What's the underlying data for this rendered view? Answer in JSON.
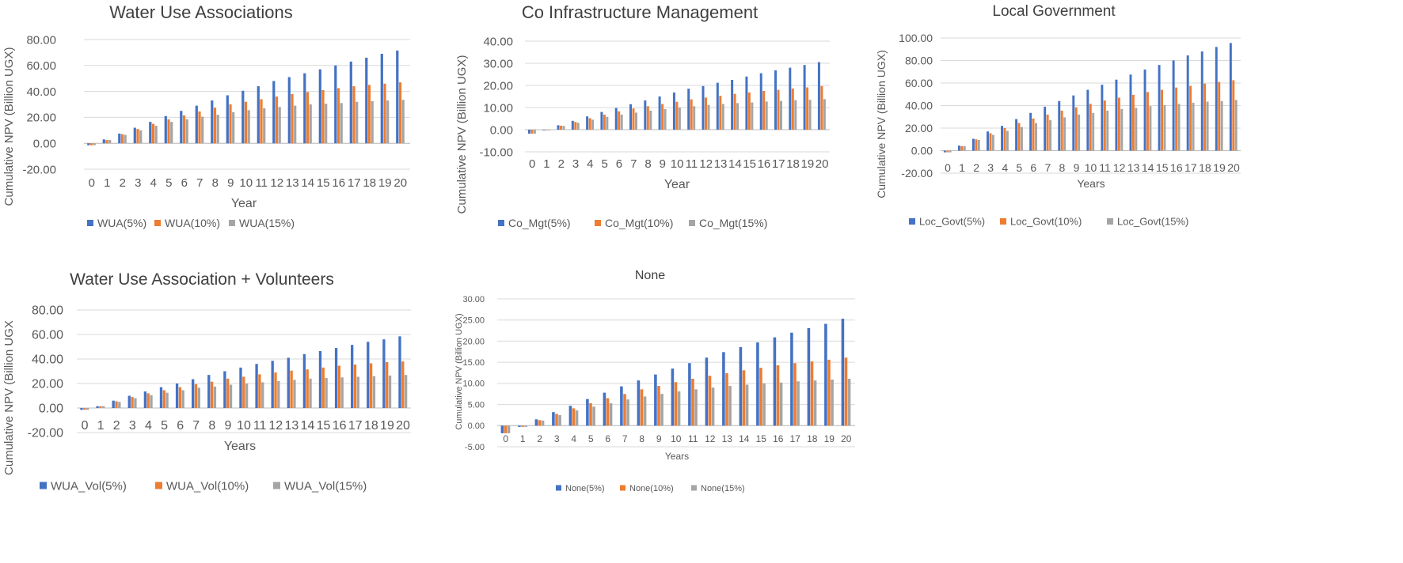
{
  "chart_data": [
    {
      "type": "bar",
      "title": "Water Use Associations",
      "xlabel": "Year",
      "ylabel": "Cumulative NPV (Billion UGX)",
      "ylim": [
        -20,
        80
      ],
      "yticks": [
        "-20.00",
        "0.00",
        "20.00",
        "40.00",
        "60.00",
        "80.00"
      ],
      "categories": [
        "0",
        "1",
        "2",
        "3",
        "4",
        "5",
        "6",
        "7",
        "8",
        "9",
        "10",
        "11",
        "12",
        "13",
        "14",
        "15",
        "16",
        "17",
        "18",
        "19",
        "20"
      ],
      "legend_position": "bottom",
      "series": [
        {
          "name": "WUA(5%)",
          "color": "#4472c4",
          "values": [
            -1.5,
            3,
            7.5,
            12,
            16.5,
            21,
            25,
            29,
            33,
            37,
            40.5,
            44,
            48,
            51,
            54,
            57,
            60,
            63,
            66,
            69,
            71.5
          ]
        },
        {
          "name": "WUA(10%)",
          "color": "#ed7d31",
          "values": [
            -1.5,
            2.5,
            7,
            11,
            15,
            18.5,
            21.5,
            24.5,
            27.5,
            30,
            32,
            34,
            36,
            38,
            39.5,
            41,
            42.5,
            44,
            45,
            46,
            47
          ]
        },
        {
          "name": "WUA(15%)",
          "color": "#a5a5a5",
          "values": [
            -1.5,
            2.5,
            6.5,
            10,
            13.5,
            16.5,
            18.5,
            20.5,
            22,
            24,
            25.5,
            27,
            28,
            29,
            30,
            30.5,
            31,
            32,
            32.5,
            33,
            33.5
          ]
        }
      ]
    },
    {
      "type": "bar",
      "title": "Co Infrastructure Management",
      "xlabel": "Year",
      "ylabel": "Cumulative NPV (Billion UGX)",
      "ylim": [
        -10,
        40
      ],
      "yticks": [
        "-10.00",
        "0.00",
        "10.00",
        "20.00",
        "30.00",
        "40.00"
      ],
      "categories": [
        "0",
        "1",
        "2",
        "3",
        "4",
        "5",
        "6",
        "7",
        "8",
        "9",
        "10",
        "11",
        "12",
        "13",
        "14",
        "15",
        "16",
        "17",
        "18",
        "19",
        "20"
      ],
      "legend_position": "bottom",
      "series": [
        {
          "name": "Co_Mgt(5%)",
          "color": "#4472c4",
          "values": [
            -1.8,
            -0.1,
            2,
            4,
            6,
            8,
            9.8,
            11.5,
            13.2,
            15,
            16.8,
            18.5,
            19.7,
            21.2,
            22.5,
            24,
            25.5,
            26.8,
            28,
            29.2,
            30.5
          ]
        },
        {
          "name": "Co_Mgt(10%)",
          "color": "#ed7d31",
          "values": [
            -1.8,
            -0.1,
            1.8,
            3.5,
            5.2,
            6.8,
            8.3,
            9.6,
            10.6,
            11.6,
            12.6,
            13.7,
            14.5,
            15.3,
            16.2,
            16.8,
            17.5,
            18,
            18.6,
            19.1,
            19.7
          ]
        },
        {
          "name": "Co_Mgt(15%)",
          "color": "#a5a5a5",
          "values": [
            -1.8,
            -0.1,
            1.7,
            3.1,
            4.5,
            5.8,
            6.8,
            7.7,
            8.6,
            9.3,
            10,
            10.6,
            11.2,
            11.6,
            12,
            12.3,
            12.7,
            13,
            13.3,
            13.5,
            13.8
          ]
        }
      ]
    },
    {
      "type": "bar",
      "title": "Local Government",
      "xlabel": "Years",
      "ylabel": "Cumulative NPV (Billion UGX)",
      "ylim": [
        -20,
        100
      ],
      "yticks": [
        "-20.00",
        "0.00",
        "20.00",
        "40.00",
        "60.00",
        "80.00",
        "100.00"
      ],
      "categories": [
        "0",
        "1",
        "2",
        "3",
        "4",
        "5",
        "6",
        "7",
        "8",
        "9",
        "10",
        "11",
        "12",
        "13",
        "14",
        "15",
        "16",
        "17",
        "18",
        "19",
        "20"
      ],
      "legend_position": "bottom",
      "series": [
        {
          "name": "Loc_Govt(5%)",
          "color": "#4472c4",
          "values": [
            -1.5,
            4.5,
            10.5,
            17,
            22,
            28,
            33.5,
            39,
            44,
            49,
            54,
            58.5,
            63,
            67.5,
            72,
            76,
            80,
            84.5,
            88,
            92,
            95.5
          ]
        },
        {
          "name": "Loc_Govt(10%)",
          "color": "#ed7d31",
          "values": [
            -1.5,
            4,
            10,
            15.5,
            20,
            24.5,
            28.5,
            32,
            35.5,
            38.5,
            41.5,
            44.5,
            47,
            49.5,
            52,
            54,
            56,
            57.5,
            59.5,
            61,
            62.5
          ]
        },
        {
          "name": "Loc_Govt(15%)",
          "color": "#a5a5a5",
          "values": [
            -1.5,
            4,
            9.5,
            14,
            17.5,
            21,
            24.5,
            27,
            29.5,
            32,
            33.5,
            35.5,
            37,
            38,
            39.5,
            40.5,
            41.5,
            42.5,
            43.5,
            44,
            45
          ]
        }
      ]
    },
    {
      "type": "bar",
      "title": "Water Use Association + Volunteers",
      "xlabel": "Years",
      "ylabel": "Cumulative NPV (Billion UGX",
      "ylim": [
        -20,
        80
      ],
      "yticks": [
        "-20.00",
        "0.00",
        "20.00",
        "40.00",
        "60.00",
        "80.00"
      ],
      "categories": [
        "0",
        "1",
        "2",
        "3",
        "4",
        "5",
        "6",
        "7",
        "8",
        "9",
        "10",
        "11",
        "12",
        "13",
        "14",
        "15",
        "16",
        "17",
        "18",
        "19",
        "20"
      ],
      "legend_position": "bottom",
      "series": [
        {
          "name": "WUA_Vol(5%)",
          "color": "#4472c4",
          "values": [
            -1.5,
            1.5,
            6,
            10,
            13.5,
            17,
            20,
            23.5,
            27,
            30,
            33,
            36,
            38.5,
            41,
            44,
            46.5,
            49,
            51.5,
            54,
            56,
            58.5
          ]
        },
        {
          "name": "WUA_Vol(10%)",
          "color": "#ed7d31",
          "values": [
            -1.5,
            1.5,
            5.5,
            9,
            12,
            14.5,
            17,
            19.5,
            21.5,
            24,
            25.5,
            27.5,
            29,
            30.5,
            31.5,
            33,
            34.5,
            35.5,
            36.5,
            37.5,
            38
          ]
        },
        {
          "name": "WUA_Vol(15%)",
          "color": "#a5a5a5",
          "values": [
            -1.5,
            1.5,
            5,
            8,
            10.5,
            12.5,
            14.5,
            16.5,
            17.5,
            19,
            20,
            21,
            22,
            23,
            24,
            24.5,
            25,
            25.5,
            26,
            26.5,
            27
          ]
        }
      ]
    },
    {
      "type": "bar",
      "title": "None",
      "xlabel": "Years",
      "ylabel": "Cumulative NPV (Billion UGX)",
      "ylim": [
        -5,
        30
      ],
      "yticks": [
        "-5.00",
        "0.00",
        "5.00",
        "10.00",
        "15.00",
        "20.00",
        "25.00",
        "30.00"
      ],
      "categories": [
        "0",
        "1",
        "2",
        "3",
        "4",
        "5",
        "6",
        "7",
        "8",
        "9",
        "10",
        "11",
        "12",
        "13",
        "14",
        "15",
        "16",
        "17",
        "18",
        "19",
        "20"
      ],
      "legend_position": "bottom",
      "series": [
        {
          "name": "None(5%)",
          "color": "#4472c4",
          "values": [
            -1.8,
            -0.3,
            1.5,
            3.2,
            4.7,
            6.3,
            7.8,
            9.3,
            10.7,
            12.1,
            13.5,
            14.8,
            16.1,
            17.4,
            18.6,
            19.7,
            20.9,
            22,
            23.1,
            24.1,
            25.3
          ]
        },
        {
          "name": "None(10%)",
          "color": "#ed7d31",
          "values": [
            -1.8,
            -0.3,
            1.3,
            2.8,
            4.1,
            5.3,
            6.5,
            7.5,
            8.6,
            9.4,
            10.3,
            11.1,
            11.8,
            12.4,
            13.1,
            13.7,
            14.3,
            14.8,
            15.2,
            15.6,
            16.1
          ]
        },
        {
          "name": "None(15%)",
          "color": "#a5a5a5",
          "values": [
            -1.8,
            -0.3,
            1.2,
            2.5,
            3.6,
            4.5,
            5.3,
            6.2,
            6.9,
            7.5,
            8.1,
            8.6,
            9,
            9.4,
            9.7,
            10,
            10.2,
            10.5,
            10.7,
            10.9,
            11.1
          ]
        }
      ]
    }
  ]
}
